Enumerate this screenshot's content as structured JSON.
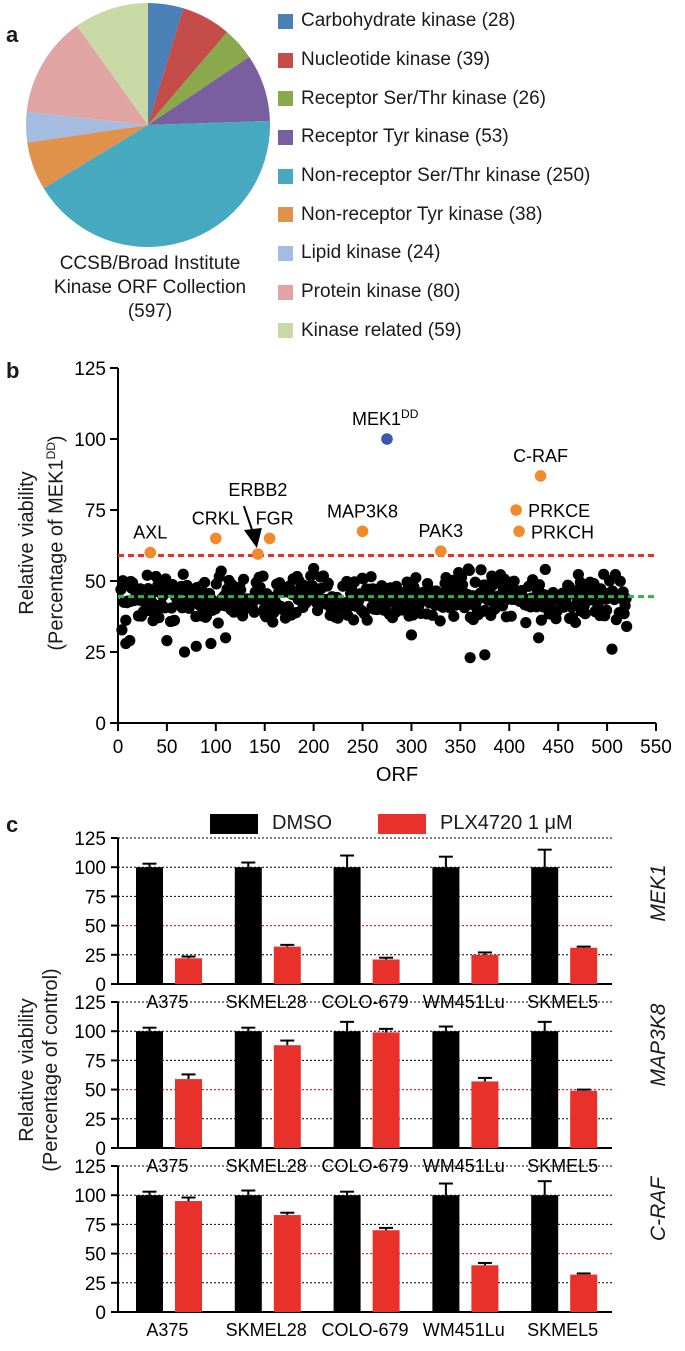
{
  "panels": {
    "a": "a",
    "b": "b",
    "c": "c"
  },
  "chart_data": [
    {
      "type": "pie",
      "panel": "a",
      "caption": [
        "CCSB/Broad Institute",
        "Kinase ORF Collection",
        "(597)"
      ],
      "slices": [
        {
          "label": "Carbohydrate kinase (28)",
          "value": 28,
          "color": "#4a80b5"
        },
        {
          "label": "Nucleotide kinase (39)",
          "value": 39,
          "color": "#c44d4a"
        },
        {
          "label": "Receptor Ser/Thr kinase (26)",
          "value": 26,
          "color": "#8aa84c"
        },
        {
          "label": "Receptor Tyr kinase (53)",
          "value": 53,
          "color": "#7a5fa0"
        },
        {
          "label": "Non-receptor Ser/Thr kinase (250)",
          "value": 250,
          "color": "#46a9bf"
        },
        {
          "label": "Non-receptor Tyr kinase (38)",
          "value": 38,
          "color": "#e0924a"
        },
        {
          "label": "Lipid kinase (24)",
          "value": 24,
          "color": "#a3bce0"
        },
        {
          "label": "Protein kinase (80)",
          "value": 80,
          "color": "#e0a4a3"
        },
        {
          "label": "Kinase related (59)",
          "value": 59,
          "color": "#c8d9a6"
        }
      ]
    },
    {
      "type": "scatter",
      "panel": "b",
      "xlabel": "ORF",
      "ylabel": [
        "Relative viability",
        "(Percentage of MEK1",
        "DD",
        ")"
      ],
      "xlim": [
        0,
        550
      ],
      "ylim": [
        0,
        125
      ],
      "xticks": [
        "0",
        "50",
        "100",
        "150",
        "200",
        "250",
        "300",
        "350",
        "400",
        "450",
        "500",
        "550"
      ],
      "yticks": [
        "0",
        "25",
        "50",
        "75",
        "100",
        "125"
      ],
      "threshold_red": 59,
      "threshold_green": 44.5,
      "highlight_color": "#f08a2c",
      "control_color": "#3d56b0",
      "highlighted": [
        {
          "label": "AXL",
          "x": 33,
          "y": 60
        },
        {
          "label": "CRKL",
          "x": 100,
          "y": 65
        },
        {
          "label": "ERBB2",
          "x": 143,
          "y": 59.5
        },
        {
          "label": "FGR",
          "x": 155,
          "y": 65
        },
        {
          "label": "MAP3K8",
          "x": 250,
          "y": 67.5
        },
        {
          "label": "PAK3",
          "x": 330,
          "y": 60.5
        },
        {
          "label": "C-RAF",
          "x": 432,
          "y": 87
        },
        {
          "label": "PRKCE",
          "x": 407,
          "y": 75
        },
        {
          "label": "PRKCH",
          "x": 410,
          "y": 67.5
        }
      ],
      "control": {
        "label": "MEK1",
        "sup": "DD",
        "x": 275,
        "y": 100
      },
      "background_points": {
        "count": 520,
        "mean": 44,
        "spread": 5,
        "outliers": [
          [
            8,
            28
          ],
          [
            12,
            29
          ],
          [
            50,
            29
          ],
          [
            68,
            25
          ],
          [
            80,
            27
          ],
          [
            95,
            28
          ],
          [
            110,
            30
          ],
          [
            360,
            23
          ],
          [
            375,
            24
          ],
          [
            505,
            26
          ],
          [
            520,
            34
          ],
          [
            430,
            30
          ],
          [
            300,
            31
          ]
        ]
      }
    },
    {
      "type": "bar",
      "panel": "c",
      "ylabel": [
        "Relative viability",
        "(Percentage of control)"
      ],
      "ylim": [
        0,
        125
      ],
      "yticks": [
        "0",
        "25",
        "50",
        "75",
        "100",
        "125"
      ],
      "reference_line": 50,
      "categories": [
        "A375",
        "SKMEL28",
        "COLO-679",
        "WM451Lu",
        "SKMEL5"
      ],
      "legend": [
        {
          "name": "DMSO",
          "color": "#000000"
        },
        {
          "name": "PLX4720 1 μM",
          "color": "#e8312a"
        }
      ],
      "subplots": [
        {
          "gene": "MEK1",
          "series": [
            {
              "name": "DMSO",
              "values": [
                100,
                100,
                100,
                100,
                100
              ],
              "errors": [
                3,
                4,
                10,
                9,
                15
              ]
            },
            {
              "name": "PLX4720 1 μM",
              "values": [
                22,
                32,
                21,
                25,
                31
              ],
              "errors": [
                1.5,
                1.5,
                1.5,
                2,
                1
              ]
            }
          ]
        },
        {
          "gene": "MAP3K8",
          "series": [
            {
              "name": "DMSO",
              "values": [
                100,
                100,
                100,
                100,
                100
              ],
              "errors": [
                3,
                3,
                8,
                4,
                8
              ]
            },
            {
              "name": "PLX4720 1 μM",
              "values": [
                59,
                88,
                99,
                57,
                49
              ],
              "errors": [
                4,
                4,
                3,
                3,
                1
              ]
            }
          ]
        },
        {
          "gene": "C-RAF",
          "series": [
            {
              "name": "DMSO",
              "values": [
                100,
                100,
                100,
                100,
                100
              ],
              "errors": [
                3,
                4,
                3,
                10,
                12
              ]
            },
            {
              "name": "PLX4720 1 μM",
              "values": [
                95,
                83,
                70,
                40,
                32
              ],
              "errors": [
                3,
                2,
                2,
                2,
                1
              ]
            }
          ]
        }
      ]
    }
  ]
}
